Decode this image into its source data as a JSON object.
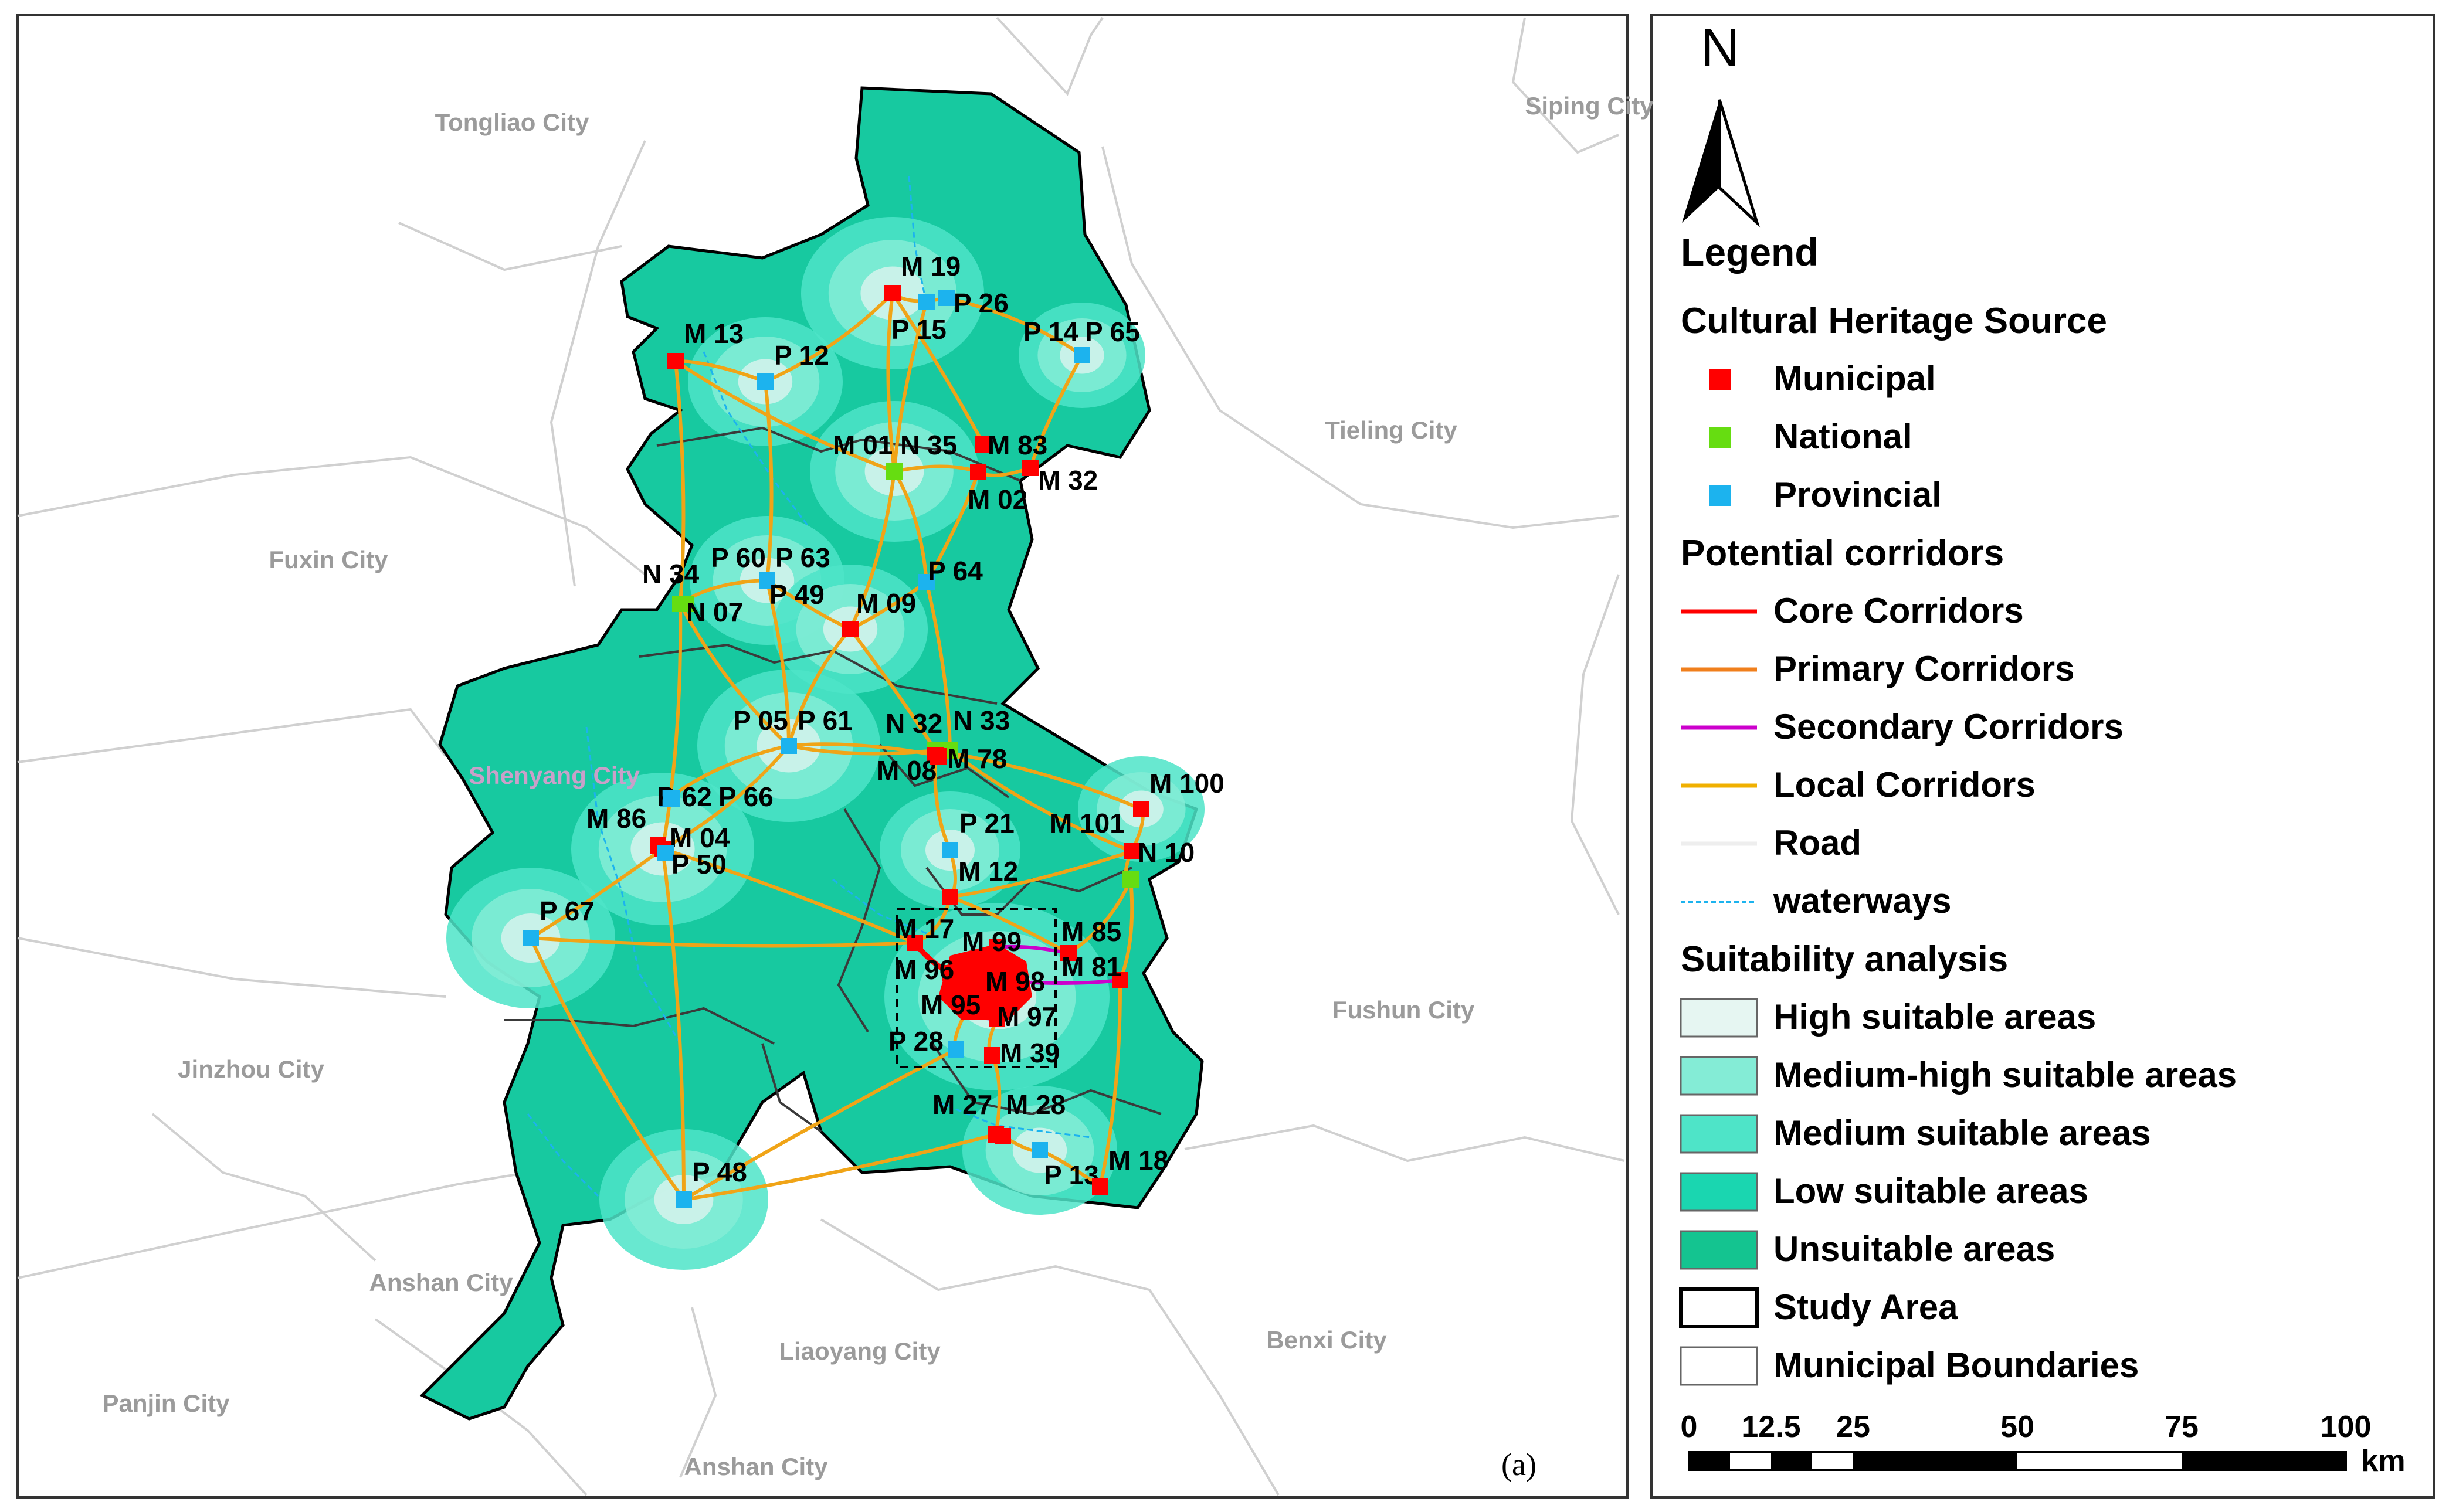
{
  "panel_label": "(a)",
  "city_labels": [
    {
      "name": "Tongliao City"
    },
    {
      "name": "Siping City"
    },
    {
      "name": "Fuxin City"
    },
    {
      "name": "Tieling City"
    },
    {
      "name": "Shenyang City"
    },
    {
      "name": "Fushun City"
    },
    {
      "name": "Jinzhou City"
    },
    {
      "name": "Anshan City"
    },
    {
      "name": "Panjin City"
    },
    {
      "name": "Liaoyang City"
    },
    {
      "name": "Benxi City"
    },
    {
      "name": "Anshan City"
    }
  ],
  "heritage_sites": [
    {
      "label": "M 19",
      "type": "municipal"
    },
    {
      "label": "P 26",
      "type": "provincial"
    },
    {
      "label": "P 15",
      "type": "provincial"
    },
    {
      "label": "P 14",
      "type": "provincial"
    },
    {
      "label": "P 65",
      "type": "provincial"
    },
    {
      "label": "M 13",
      "type": "municipal"
    },
    {
      "label": "P 12",
      "type": "provincial"
    },
    {
      "label": "M 01",
      "type": "municipal"
    },
    {
      "label": "N 35",
      "type": "national"
    },
    {
      "label": "M 83",
      "type": "municipal"
    },
    {
      "label": "M 02",
      "type": "municipal"
    },
    {
      "label": "M 32",
      "type": "municipal"
    },
    {
      "label": "P 60",
      "type": "provincial"
    },
    {
      "label": "P 63",
      "type": "provincial"
    },
    {
      "label": "P 49",
      "type": "provincial"
    },
    {
      "label": "N 34",
      "type": "national"
    },
    {
      "label": "N 07",
      "type": "national"
    },
    {
      "label": "M 09",
      "type": "municipal"
    },
    {
      "label": "P 64",
      "type": "provincial"
    },
    {
      "label": "P 05",
      "type": "provincial"
    },
    {
      "label": "P 61",
      "type": "provincial"
    },
    {
      "label": "N 32",
      "type": "national"
    },
    {
      "label": "N 33",
      "type": "national"
    },
    {
      "label": "M 08",
      "type": "municipal"
    },
    {
      "label": "M 78",
      "type": "municipal"
    },
    {
      "label": "M 100",
      "type": "municipal"
    },
    {
      "label": "M 101",
      "type": "municipal"
    },
    {
      "label": "N 10",
      "type": "national"
    },
    {
      "label": "P 62",
      "type": "provincial"
    },
    {
      "label": "P 66",
      "type": "provincial"
    },
    {
      "label": "M 86",
      "type": "municipal"
    },
    {
      "label": "M 04",
      "type": "municipal"
    },
    {
      "label": "P 50",
      "type": "provincial"
    },
    {
      "label": "P 21",
      "type": "provincial"
    },
    {
      "label": "M 12",
      "type": "municipal"
    },
    {
      "label": "P 67",
      "type": "provincial"
    },
    {
      "label": "M 17",
      "type": "municipal"
    },
    {
      "label": "M 99",
      "type": "municipal"
    },
    {
      "label": "M 85",
      "type": "municipal"
    },
    {
      "label": "M 96",
      "type": "municipal"
    },
    {
      "label": "M 98",
      "type": "municipal"
    },
    {
      "label": "M 81",
      "type": "municipal"
    },
    {
      "label": "M 95",
      "type": "municipal"
    },
    {
      "label": "M 97",
      "type": "municipal"
    },
    {
      "label": "P 28",
      "type": "provincial"
    },
    {
      "label": "M 39",
      "type": "municipal"
    },
    {
      "label": "M 27",
      "type": "municipal"
    },
    {
      "label": "M 28",
      "type": "municipal"
    },
    {
      "label": "P 13",
      "type": "provincial"
    },
    {
      "label": "M 18",
      "type": "municipal"
    },
    {
      "label": "P 48",
      "type": "provincial"
    }
  ],
  "legend": {
    "north": "N",
    "title": "Legend",
    "sections": [
      {
        "heading": "Cultural Heritage Source",
        "items": [
          {
            "label": "Municipal",
            "kind": "square",
            "color": "#ff0000"
          },
          {
            "label": "National",
            "kind": "square",
            "color": "#66dd11"
          },
          {
            "label": "Provincial",
            "kind": "square",
            "color": "#1cb3ee"
          }
        ]
      },
      {
        "heading": "Potential corridors",
        "items": [
          {
            "label": "Core Corridors",
            "kind": "line",
            "color": "#ff0000"
          },
          {
            "label": "Primary Corridors",
            "kind": "line",
            "color": "#f07f1c"
          },
          {
            "label": "Secondary Corridors",
            "kind": "line",
            "color": "#cc00cc"
          },
          {
            "label": "Local Corridors",
            "kind": "line",
            "color": "#f0b000"
          },
          {
            "label": "Road",
            "kind": "line",
            "color": "#eeeeee"
          },
          {
            "label": "waterways",
            "kind": "dashed",
            "color": "#1cb3ee"
          }
        ]
      },
      {
        "heading": "Suitability analysis",
        "items": [
          {
            "label": "High suitable areas",
            "kind": "box",
            "color": "#e6f6f2"
          },
          {
            "label": "Medium-high suitable areas",
            "kind": "box",
            "color": "#84ecd6"
          },
          {
            "label": "Medium suitable areas",
            "kind": "box",
            "color": "#4ee4c8"
          },
          {
            "label": "Low suitable areas",
            "kind": "box",
            "color": "#1ad6b0"
          },
          {
            "label": "Unsuitable areas",
            "kind": "box",
            "color": "#14c490"
          },
          {
            "label": "Study Area",
            "kind": "outline",
            "color": "#000000"
          },
          {
            "label": "Municipal Boundaries",
            "kind": "box",
            "color": "#ffffff"
          }
        ]
      }
    ],
    "scale": {
      "ticks": [
        "0",
        "12.5",
        "25",
        "50",
        "75",
        "100"
      ],
      "unit": "km"
    }
  }
}
